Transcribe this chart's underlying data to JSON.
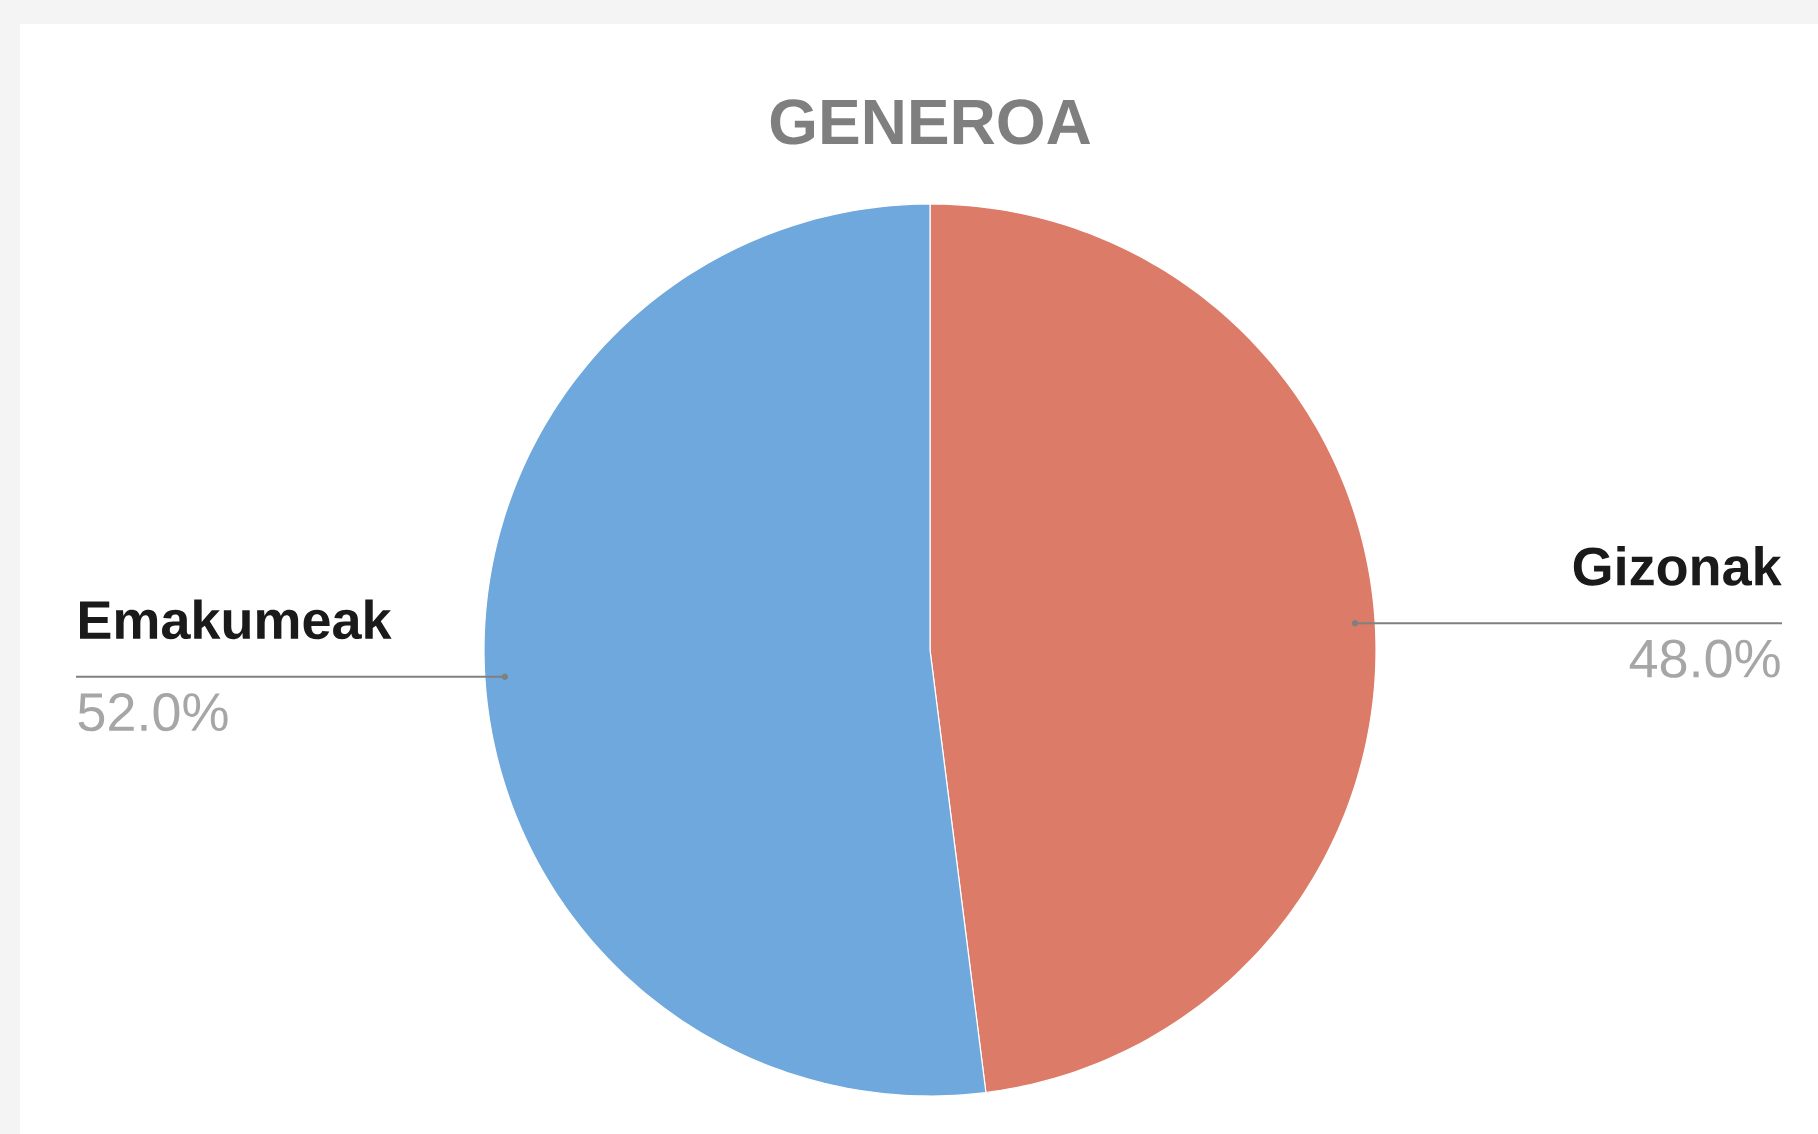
{
  "chart_data": {
    "type": "pie",
    "title": "GENEROA",
    "categories": [
      "Gizonak",
      "Emakumeak"
    ],
    "values": [
      48.0,
      52.0
    ],
    "colors": [
      "#dd7b69",
      "#6fa8dc"
    ],
    "value_labels": [
      "48.0%",
      "52.0%"
    ]
  }
}
